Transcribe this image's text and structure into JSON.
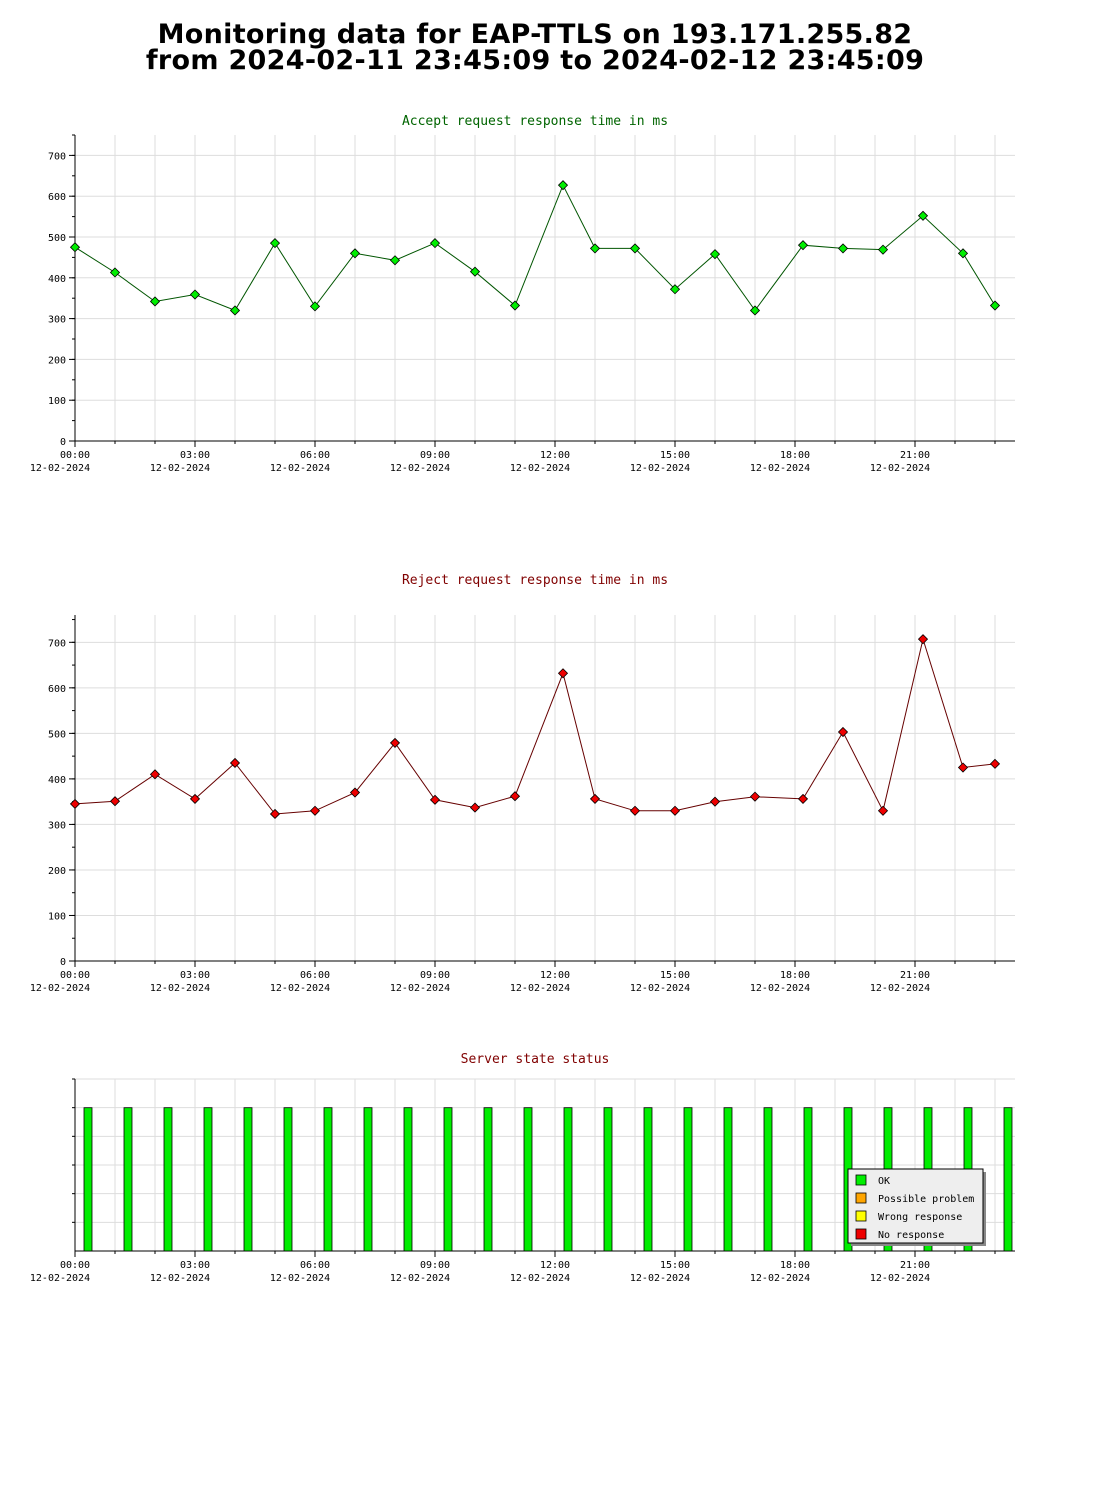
{
  "page": {
    "title_line1": "Monitoring data for EAP-TTLS on 193.171.255.82",
    "title_line2": "from 2024-02-11 23:45:09 to 2024-02-12 23:45:09"
  },
  "colors": {
    "accept_title": "#006400",
    "reject_title": "#800000",
    "status_title": "#800000",
    "accept_marker": "#00ee00",
    "accept_line": "#005500",
    "reject_marker": "#ee0000",
    "reject_line": "#660000",
    "ok": "#00ee00",
    "possible_problem": "#ffa500",
    "wrong_response": "#ffff00",
    "no_response": "#ee0000",
    "grid": "#dddddd"
  },
  "x_axis": {
    "tick_labels": [
      {
        "time": "00:00",
        "date": "12-02-2024"
      },
      {
        "time": "03:00",
        "date": "12-02-2024"
      },
      {
        "time": "06:00",
        "date": "12-02-2024"
      },
      {
        "time": "09:00",
        "date": "12-02-2024"
      },
      {
        "time": "12:00",
        "date": "12-02-2024"
      },
      {
        "time": "15:00",
        "date": "12-02-2024"
      },
      {
        "time": "18:00",
        "date": "12-02-2024"
      },
      {
        "time": "21:00",
        "date": "12-02-2024"
      }
    ]
  },
  "chart_data": [
    {
      "id": "accept",
      "type": "line",
      "title": "Accept request response time in ms",
      "xlabel": "",
      "ylabel": "",
      "x_unit": "hour of day (12-02-2024)",
      "xlim": [
        0,
        23.5
      ],
      "ylim": [
        0,
        750
      ],
      "yticks": [
        0,
        100,
        200,
        300,
        400,
        500,
        600,
        700
      ],
      "grid": true,
      "x": [
        0,
        1,
        2,
        3,
        4,
        5,
        6,
        7,
        8,
        9,
        10,
        11,
        12.2,
        13,
        14,
        15,
        16,
        17,
        18.2,
        19.2,
        20.2,
        21.2,
        22.2,
        23
      ],
      "values": [
        475,
        413,
        342,
        359,
        320,
        485,
        330,
        460,
        443,
        485,
        415,
        332,
        627,
        472,
        472,
        372,
        458,
        320,
        480,
        472,
        469,
        552,
        460,
        332
      ]
    },
    {
      "id": "reject",
      "type": "line",
      "title": "Reject request response time in ms",
      "xlabel": "",
      "ylabel": "",
      "x_unit": "hour of day (12-02-2024)",
      "xlim": [
        0,
        23.5
      ],
      "ylim": [
        0,
        760
      ],
      "yticks": [
        0,
        100,
        200,
        300,
        400,
        500,
        600,
        700
      ],
      "grid": true,
      "x": [
        0,
        1,
        2,
        3,
        4,
        5,
        6,
        7,
        8,
        9,
        10,
        11,
        12.2,
        13,
        14,
        15,
        16,
        17,
        18.2,
        19.2,
        20.2,
        21.2,
        22.2,
        23
      ],
      "values": [
        345,
        351,
        410,
        356,
        435,
        323,
        330,
        370,
        479,
        354,
        337,
        362,
        632,
        356,
        330,
        330,
        350,
        361,
        356,
        503,
        330,
        707,
        425,
        433
      ]
    },
    {
      "id": "status",
      "type": "bar",
      "title": "Server state status",
      "xlabel": "",
      "ylabel": "",
      "x_unit": "hour of day (12-02-2024)",
      "xlim": [
        0,
        23.5
      ],
      "ylim": [
        0,
        1.2
      ],
      "grid": true,
      "legend_position": "bottom-right",
      "legend": [
        {
          "label": "OK",
          "color_key": "ok"
        },
        {
          "label": "Possible problem",
          "color_key": "possible_problem"
        },
        {
          "label": "Wrong response",
          "color_key": "wrong_response"
        },
        {
          "label": "No response",
          "color_key": "no_response"
        }
      ],
      "x": [
        0.05,
        1.05,
        2.05,
        3.05,
        4.05,
        5.05,
        6.05,
        7.05,
        8.05,
        9.05,
        10.05,
        11.05,
        12.05,
        13.05,
        14.05,
        15.05,
        16.05,
        17.05,
        18.05,
        19.05,
        20.05,
        21.05,
        22.05,
        23.05
      ],
      "state": [
        "OK",
        "OK",
        "OK",
        "OK",
        "OK",
        "OK",
        "OK",
        "OK",
        "OK",
        "OK",
        "OK",
        "OK",
        "OK",
        "OK",
        "OK",
        "OK",
        "OK",
        "OK",
        "OK",
        "OK",
        "OK",
        "OK",
        "OK",
        "OK"
      ],
      "values": [
        1,
        1,
        1,
        1,
        1,
        1,
        1,
        1,
        1,
        1,
        1,
        1,
        1,
        1,
        1,
        1,
        1,
        1,
        1,
        1,
        1,
        1,
        1,
        1
      ]
    }
  ]
}
